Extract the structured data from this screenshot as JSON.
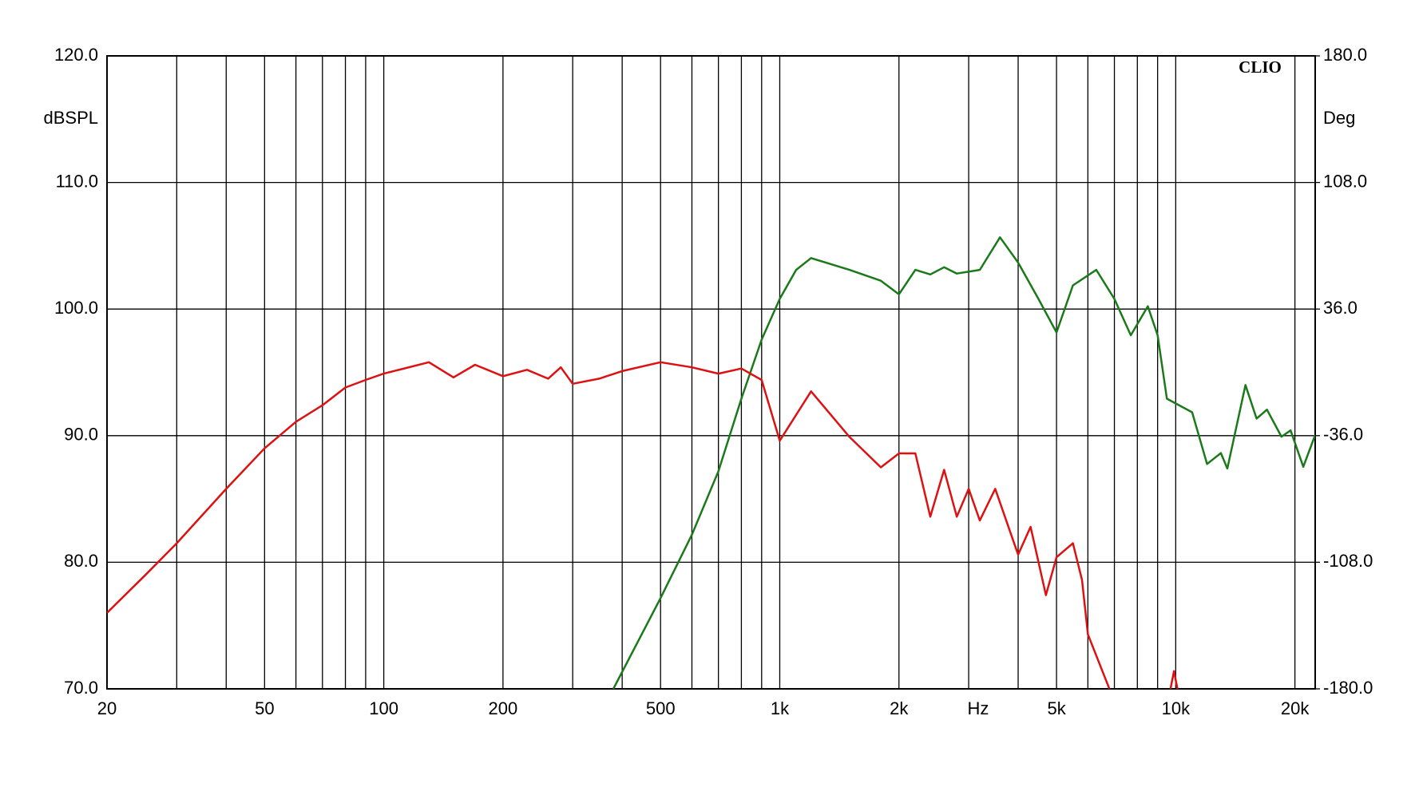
{
  "chart_data": {
    "type": "line",
    "logo": "CLIO",
    "ylabel": "dBSPL",
    "y2label": "Deg",
    "xlabel": "Hz",
    "xscale": "log",
    "grid": true,
    "xlim": [
      20,
      22500
    ],
    "xticks": [
      {
        "value": 20,
        "label": "20"
      },
      {
        "value": 50,
        "label": "50"
      },
      {
        "value": 100,
        "label": "100"
      },
      {
        "value": 200,
        "label": "200"
      },
      {
        "value": 500,
        "label": "500"
      },
      {
        "value": 1000,
        "label": "1k"
      },
      {
        "value": 2000,
        "label": "2k"
      },
      {
        "value": 5000,
        "label": "5k"
      },
      {
        "value": 10000,
        "label": "10k"
      },
      {
        "value": 20000,
        "label": "20k"
      }
    ],
    "xminor": [
      30,
      40,
      60,
      70,
      80,
      90,
      300,
      400,
      600,
      700,
      800,
      900,
      3000,
      4000,
      6000,
      7000,
      8000,
      9000
    ],
    "ylim": [
      70,
      120
    ],
    "yticks": [
      {
        "value": 70,
        "label": "70.0"
      },
      {
        "value": 80,
        "label": "80.0"
      },
      {
        "value": 90,
        "label": "90.0"
      },
      {
        "value": 100,
        "label": "100.0"
      },
      {
        "value": 110,
        "label": "110.0"
      },
      {
        "value": 120,
        "label": "120.0"
      }
    ],
    "y2lim": [
      -180,
      180
    ],
    "y2ticks": [
      {
        "value": -180,
        "label": "-180.0"
      },
      {
        "value": -108,
        "label": "-108.0"
      },
      {
        "value": -36,
        "label": "-36.0"
      },
      {
        "value": 36,
        "label": "36.0"
      },
      {
        "value": 108,
        "label": "108.0"
      },
      {
        "value": 180,
        "label": "180.0"
      }
    ],
    "series": [
      {
        "color": "#dd1111",
        "axis": "y",
        "x": [
          20,
          25,
          30,
          40,
          50,
          60,
          70,
          80,
          90,
          100,
          130,
          150,
          170,
          200,
          230,
          260,
          280,
          300,
          350,
          400,
          500,
          600,
          700,
          800,
          900,
          1000,
          1200,
          1500,
          1800,
          2000,
          2200,
          2400,
          2600,
          2800,
          3000,
          3200,
          3500,
          4000,
          4300,
          4700,
          5000,
          5500,
          5800,
          6000,
          6800,
          8000,
          9700,
          9900,
          10100
        ],
        "values": [
          76.0,
          79.0,
          81.5,
          85.8,
          89.0,
          91.1,
          92.4,
          93.8,
          94.4,
          94.9,
          95.8,
          94.6,
          95.6,
          94.7,
          95.2,
          94.5,
          95.4,
          94.1,
          94.5,
          95.1,
          95.8,
          95.4,
          94.9,
          95.3,
          94.4,
          89.6,
          93.5,
          89.9,
          87.5,
          88.6,
          88.6,
          83.6,
          87.3,
          83.6,
          85.8,
          83.3,
          85.8,
          80.6,
          82.8,
          77.4,
          80.4,
          81.5,
          78.6,
          74.3,
          70.0,
          null,
          70.0,
          71.4,
          70.0
        ]
      },
      {
        "color": "#1a7a1a",
        "axis": "y2",
        "x": [
          380,
          500,
          600,
          700,
          800,
          900,
          1000,
          1100,
          1200,
          1500,
          1800,
          2000,
          2200,
          2400,
          2600,
          2800,
          3200,
          3600,
          4000,
          4500,
          5000,
          5500,
          6300,
          7000,
          7700,
          8500,
          9000,
          9500,
          11000,
          12000,
          13000,
          13500,
          15000,
          16000,
          17000,
          18500,
          19500,
          21000,
          22500
        ],
        "values": [
          -180,
          -128.4,
          -92.3,
          -56.2,
          -15,
          18.6,
          41.8,
          58.3,
          65,
          58.3,
          52.1,
          44.4,
          58.3,
          55.7,
          59.8,
          56.2,
          58.3,
          76.8,
          62.4,
          41.8,
          22.7,
          49.5,
          58.3,
          41.8,
          21.1,
          37.6,
          21.1,
          -15,
          -22.7,
          -52.1,
          -45.9,
          -54.7,
          -7.2,
          -26.3,
          -21.2,
          -36.6,
          -33,
          -53.7,
          -35.6
        ]
      }
    ]
  }
}
